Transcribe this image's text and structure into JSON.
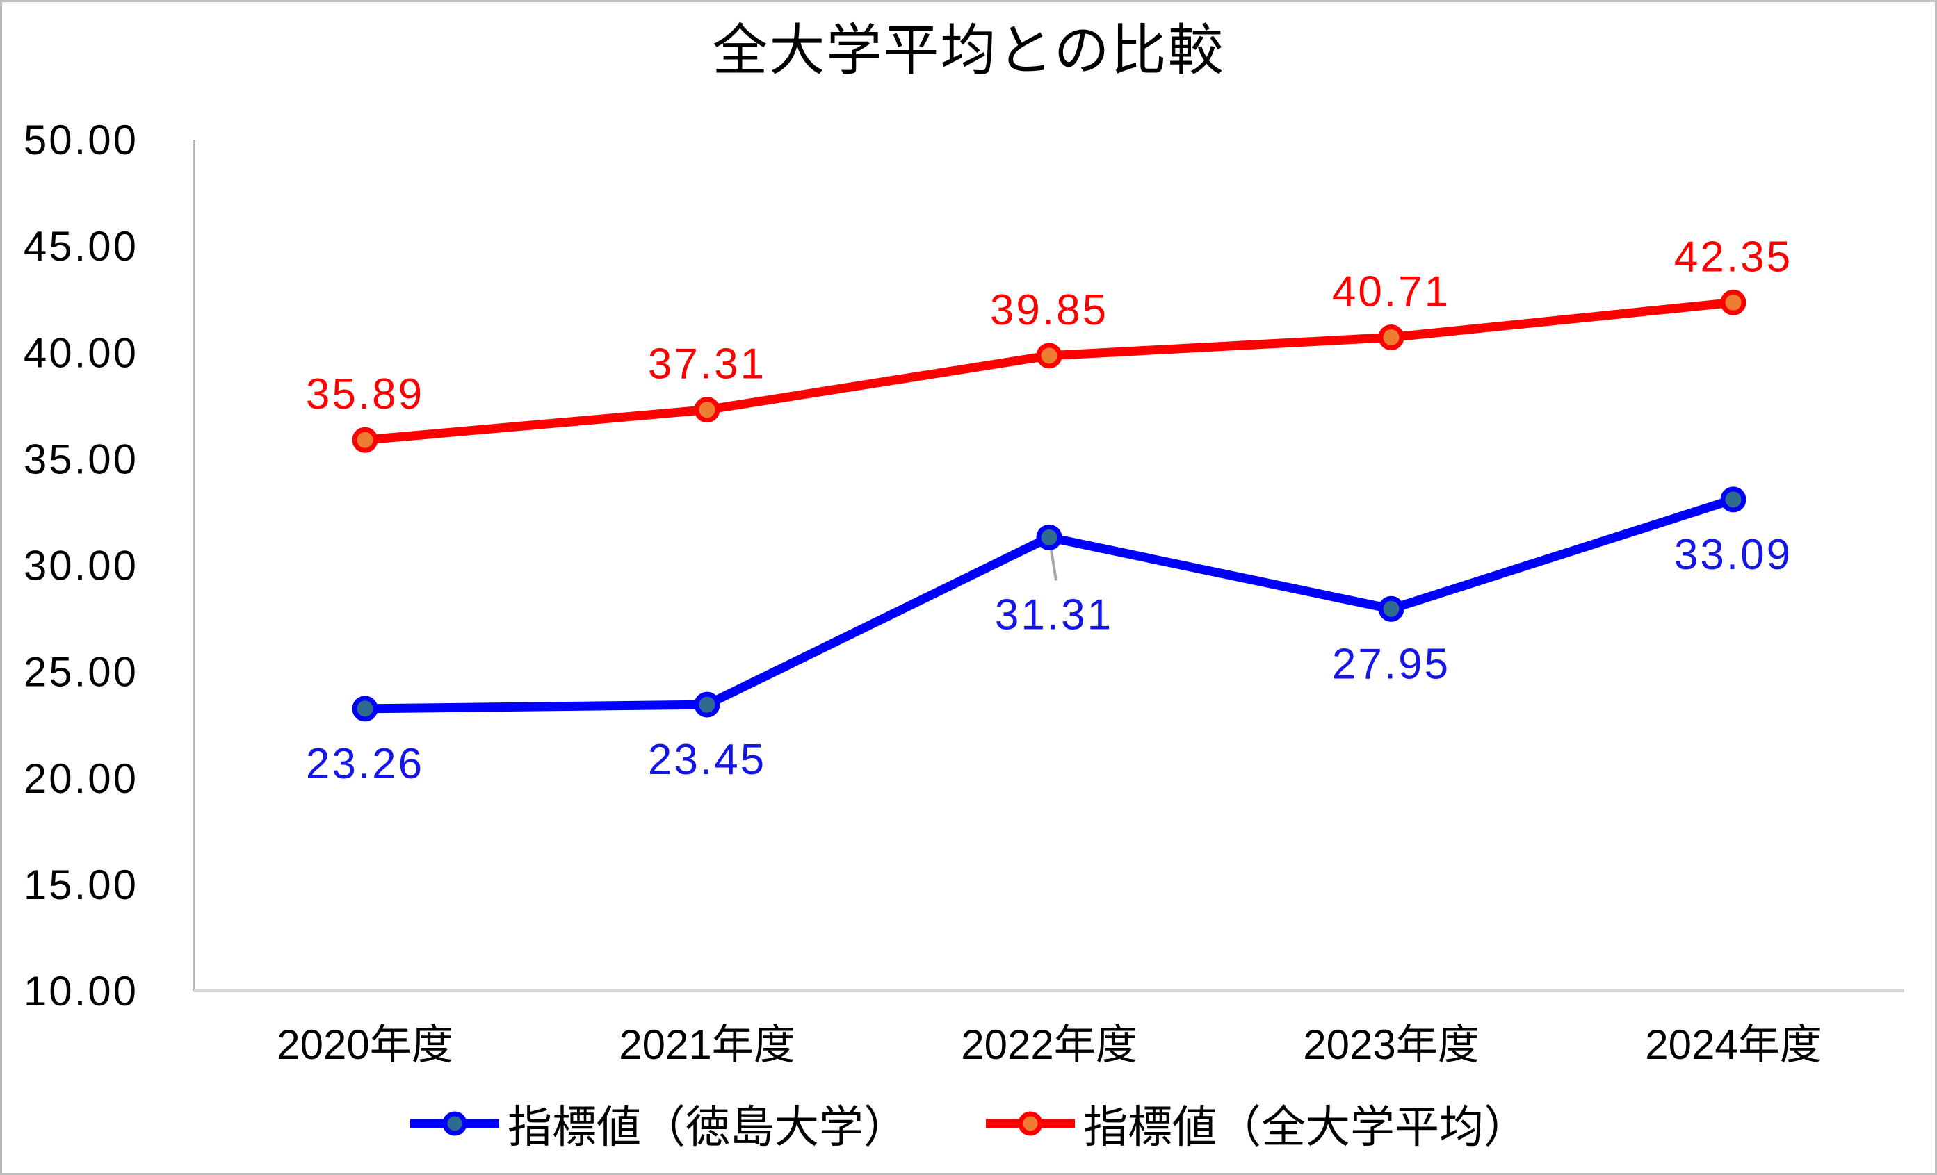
{
  "page": {
    "background_color": "#FFFFFF",
    "border_color": "#BDBDBD"
  },
  "chart_data": {
    "type": "line",
    "title": "全大学平均との比較",
    "categories": [
      "2020年度",
      "2021年度",
      "2022年度",
      "2023年度",
      "2024年度"
    ],
    "series": [
      {
        "name": "指標値（徳島大学）",
        "values": [
          23.26,
          23.45,
          31.31,
          27.95,
          33.09
        ],
        "line_color": "#0000FF",
        "marker_fill": "#2F6B8F",
        "marker_outline": "#0000FF",
        "label_color": "#1515E8",
        "label_position": "below"
      },
      {
        "name": "指標値（全大学平均）",
        "values": [
          35.89,
          37.31,
          39.85,
          40.71,
          42.35
        ],
        "line_color": "#FE0000",
        "marker_fill": "#ED7D31",
        "marker_outline": "#FE0000",
        "label_color": "#FE0000",
        "label_position": "above"
      }
    ],
    "y_axis": {
      "min": 10,
      "max": 50,
      "step": 5,
      "tick_decimals": 2,
      "tick_color": "#000000"
    },
    "x_axis": {
      "label_color": "#000000"
    },
    "data_label_decimals": 2,
    "gridlines": false,
    "legend_position": "bottom",
    "moved_label": {
      "series_index": 0,
      "point_index": 2,
      "leader_line_color": "#A6A6A6"
    },
    "axis_colors": {
      "vertical_line": "#B5B5B5",
      "horizontal_line": "#D9D9D9"
    }
  }
}
